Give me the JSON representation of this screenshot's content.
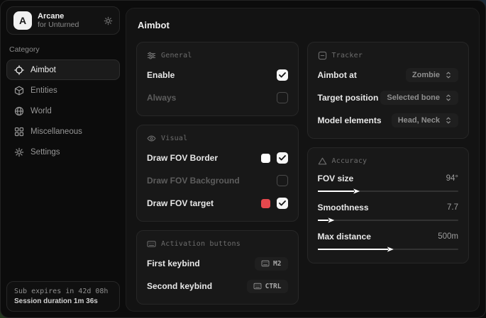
{
  "app": {
    "logo_letter": "A",
    "name": "Arcane",
    "subtitle": "for Unturned"
  },
  "sidebar": {
    "category_label": "Category",
    "items": [
      {
        "label": "Aimbot"
      },
      {
        "label": "Entities"
      },
      {
        "label": "World"
      },
      {
        "label": "Miscellaneous"
      },
      {
        "label": "Settings"
      }
    ],
    "footer": {
      "sub_expires": "Sub expires in 42d 08h",
      "session_duration": "Session duration 1m 36s"
    }
  },
  "main": {
    "title": "Aimbot",
    "general": {
      "title": "General",
      "rows": [
        {
          "label": "Enable",
          "checked": true
        },
        {
          "label": "Always",
          "checked": false
        }
      ]
    },
    "visual": {
      "title": "Visual",
      "rows": [
        {
          "label": "Draw FOV Border",
          "swatch": "#ffffff",
          "checked": true
        },
        {
          "label": "Draw FOV Background",
          "checked": false
        },
        {
          "label": "Draw FOV target",
          "swatch": "#e5484d",
          "checked": true
        }
      ]
    },
    "activation": {
      "title": "Activation buttons",
      "rows": [
        {
          "label": "First keybind",
          "key": "M2"
        },
        {
          "label": "Second keybind",
          "key": "CTRL"
        }
      ]
    },
    "tracker": {
      "title": "Tracker",
      "rows": [
        {
          "label": "Aimbot at",
          "value": "Zombie"
        },
        {
          "label": "Target position",
          "value": "Selected bone"
        },
        {
          "label": "Model elements",
          "value": "Head, Neck"
        }
      ]
    },
    "accuracy": {
      "title": "Accuracy",
      "rows": [
        {
          "label": "FOV size",
          "value": "94°",
          "percent": 26
        },
        {
          "label": "Smoothness",
          "value": "7.7",
          "percent": 8
        },
        {
          "label": "Max distance",
          "value": "500m",
          "percent": 50
        }
      ]
    }
  },
  "colors": {
    "accent_red": "#e5484d",
    "swatch_white": "#ffffff"
  }
}
